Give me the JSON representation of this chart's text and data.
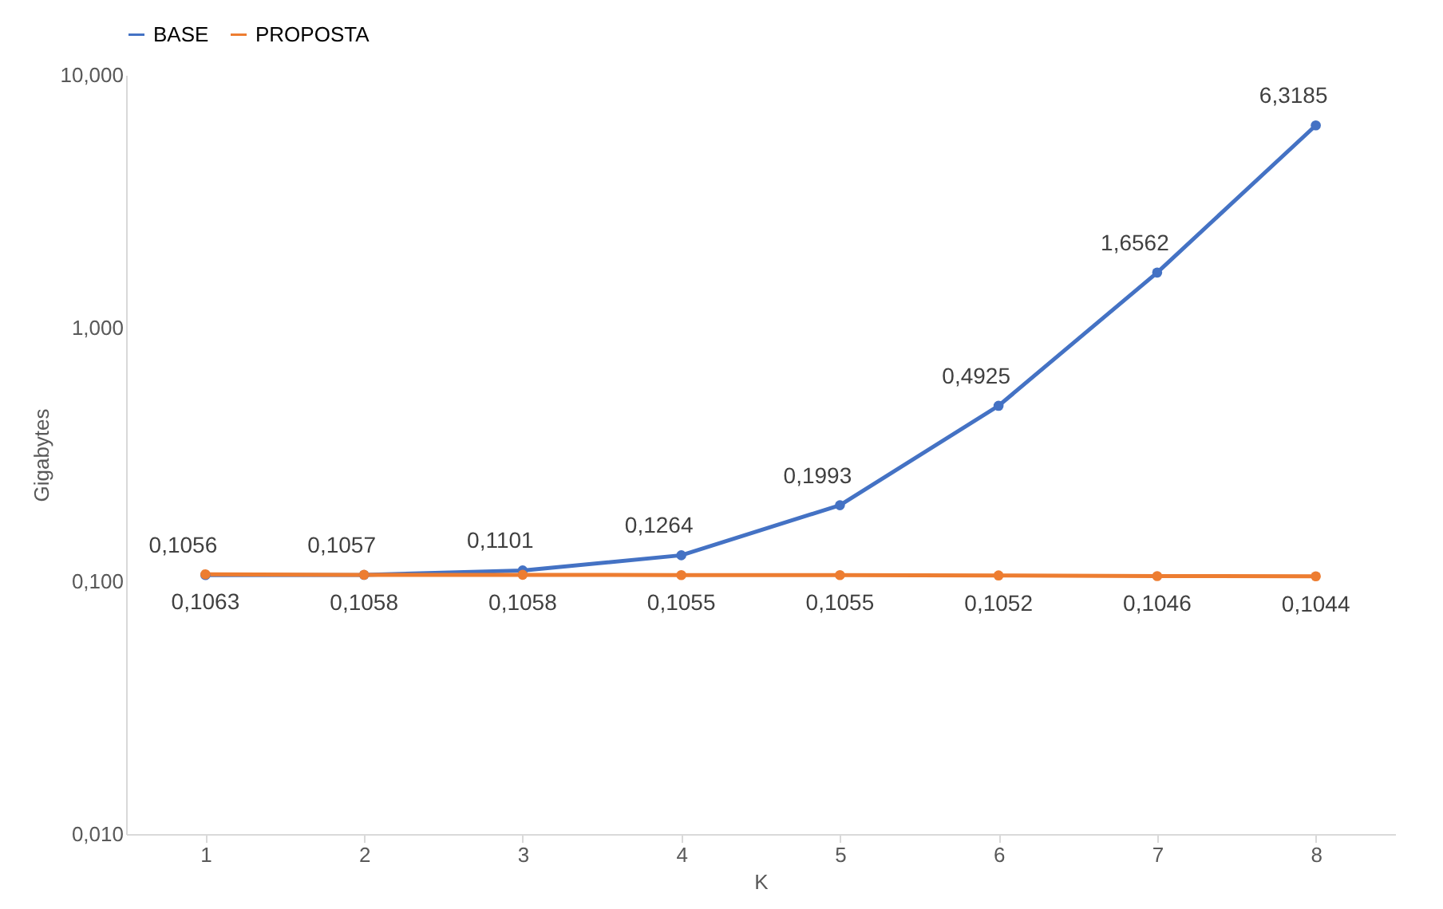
{
  "chart_data": {
    "type": "line",
    "xlabel": "K",
    "ylabel": "Gigabytes",
    "categories": [
      "1",
      "2",
      "3",
      "4",
      "5",
      "6",
      "7",
      "8"
    ],
    "series": [
      {
        "name": "BASE",
        "color": "#4472c4",
        "values": [
          0.1056,
          0.1057,
          0.1101,
          0.1264,
          0.1993,
          0.4925,
          1.6562,
          6.3185
        ],
        "value_labels": [
          "0,1056",
          "0,1057",
          "0,1101",
          "0,1264",
          "0,1993",
          "0,4925",
          "1,6562",
          "6,3185"
        ]
      },
      {
        "name": "PROPOSTA",
        "color": "#ed7d31",
        "values": [
          0.1063,
          0.1058,
          0.1058,
          0.1055,
          0.1055,
          0.1052,
          0.1046,
          0.1044
        ],
        "value_labels": [
          "0,1063",
          "0,1058",
          "0,1058",
          "0,1055",
          "0,1055",
          "0,1052",
          "0,1046",
          "0,1044"
        ]
      }
    ],
    "log": "y",
    "ylim": [
      0.01,
      10
    ],
    "yticks": [
      {
        "value": 0.01,
        "label": "0,010"
      },
      {
        "value": 0.1,
        "label": "0,100"
      },
      {
        "value": 1,
        "label": "1,000"
      },
      {
        "value": 10,
        "label": "10,000"
      }
    ],
    "grid": false,
    "legend": "top",
    "marker": "circle",
    "line_style": "solid"
  }
}
